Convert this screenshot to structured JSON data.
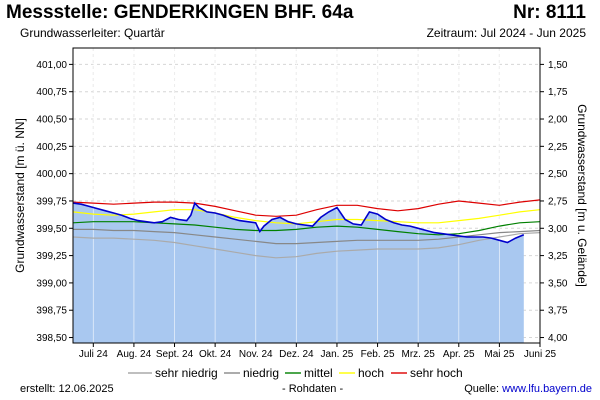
{
  "header": {
    "title": "Messstelle: GENDERKINGEN BHF. 64a",
    "number": "Nr: 8111",
    "aquifer": "Grundwasserleiter: Quartär",
    "period": "Zeitraum: Jul 2024 - Jun 2025"
  },
  "footer": {
    "created": "erstellt:  12.06.2025",
    "raw": "- Rohdaten -",
    "source_label": "Quelle: ",
    "source_link": "www.lfu.bayern.de"
  },
  "colors": {
    "fill": "#a9c8f0",
    "measured": "#0000cc",
    "sehr_niedrig": "#aaaaaa",
    "niedrig": "#888888",
    "mittel": "#008000",
    "hoch": "#ffff00",
    "sehr_hoch": "#dd0000"
  },
  "chart_data": {
    "type": "line",
    "ylabel": "Grundwasserstand [m ü. NN]",
    "ylabel_right": "Grundwasserstand [m u. Gelände]",
    "ylim": [
      398.45,
      401.15
    ],
    "yticks": [
      398.5,
      398.75,
      399.0,
      399.25,
      399.5,
      399.75,
      400.0,
      400.25,
      400.5,
      400.75,
      401.0
    ],
    "ytick_labels": [
      "398,50",
      "398,75",
      "399,00",
      "399,25",
      "399,50",
      "399,75",
      "400,00",
      "400,25",
      "400,50",
      "400,75",
      "401,00"
    ],
    "ytick_labels_right": [
      "4,00",
      "3,75",
      "3,50",
      "3,25",
      "3,00",
      "2,75",
      "2,50",
      "2,25",
      "2,00",
      "1,75",
      "1,50"
    ],
    "xlim": [
      0,
      11.5
    ],
    "xticks": [
      0.5,
      1.5,
      2.5,
      3.5,
      4.5,
      5.5,
      6.5,
      7.5,
      8.5,
      9.5,
      10.5,
      11.5
    ],
    "xtick_labels": [
      "Juli 24",
      "Aug. 24",
      "Sept. 24",
      "Okt. 24",
      "Nov. 24",
      "Dez. 24",
      "Jan. 25",
      "Feb. 25",
      "Mrz. 25",
      "Apr. 25",
      "Mai 25",
      "Juni 25"
    ],
    "grid": true,
    "legend_position": "bottom",
    "x": [
      0,
      0.5,
      1,
      1.5,
      2,
      2.5,
      3,
      3.5,
      4,
      4.5,
      5,
      5.5,
      6,
      6.5,
      7,
      7.5,
      8,
      8.5,
      9,
      9.5,
      10,
      10.5,
      11,
      11.5
    ],
    "series": [
      {
        "name": "sehr niedrig",
        "key": "sehr_niedrig",
        "values": [
          399.42,
          399.41,
          399.41,
          399.4,
          399.39,
          399.37,
          399.34,
          399.31,
          399.28,
          399.25,
          399.23,
          399.24,
          399.27,
          399.29,
          399.3,
          399.31,
          399.31,
          399.31,
          399.32,
          399.35,
          399.39,
          399.42,
          399.45,
          399.46
        ]
      },
      {
        "name": "niedrig",
        "key": "niedrig",
        "values": [
          399.49,
          399.49,
          399.48,
          399.48,
          399.47,
          399.46,
          399.44,
          399.42,
          399.4,
          399.38,
          399.36,
          399.36,
          399.37,
          399.38,
          399.39,
          399.39,
          399.39,
          399.39,
          399.4,
          399.42,
          399.44,
          399.46,
          399.47,
          399.48
        ]
      },
      {
        "name": "mittel",
        "key": "mittel",
        "values": [
          399.55,
          399.56,
          399.56,
          399.56,
          399.55,
          399.54,
          399.53,
          399.51,
          399.49,
          399.48,
          399.48,
          399.49,
          399.51,
          399.52,
          399.51,
          399.49,
          399.47,
          399.45,
          399.44,
          399.45,
          399.48,
          399.52,
          399.55,
          399.56
        ]
      },
      {
        "name": "hoch",
        "key": "hoch",
        "values": [
          399.65,
          399.63,
          399.62,
          399.63,
          399.65,
          399.67,
          399.67,
          399.64,
          399.6,
          399.57,
          399.55,
          399.54,
          399.56,
          399.58,
          399.58,
          399.57,
          399.56,
          399.55,
          399.55,
          399.57,
          399.59,
          399.62,
          399.65,
          399.67
        ]
      },
      {
        "name": "sehr hoch",
        "key": "sehr_hoch",
        "values": [
          399.74,
          399.73,
          399.72,
          399.73,
          399.74,
          399.74,
          399.73,
          399.7,
          399.66,
          399.62,
          399.61,
          399.62,
          399.67,
          399.71,
          399.71,
          399.68,
          399.66,
          399.68,
          399.72,
          399.75,
          399.73,
          399.71,
          399.74,
          399.76
        ]
      }
    ],
    "measured": {
      "x": [
        0,
        0.2,
        0.4,
        0.6,
        0.8,
        1.0,
        1.2,
        1.4,
        1.6,
        1.8,
        2.0,
        2.2,
        2.4,
        2.6,
        2.8,
        2.9,
        3.0,
        3.1,
        3.3,
        3.5,
        3.7,
        3.9,
        4.1,
        4.3,
        4.5,
        4.6,
        4.7,
        4.9,
        5.1,
        5.3,
        5.5,
        5.7,
        5.9,
        6.1,
        6.3,
        6.5,
        6.7,
        6.9,
        7.1,
        7.3,
        7.5,
        7.7,
        7.9,
        8.1,
        8.3,
        8.5,
        8.7,
        8.9,
        9.1,
        9.3,
        9.5,
        9.7,
        9.9,
        10.1,
        10.3,
        10.5,
        10.7,
        10.9,
        11.1
      ],
      "values": [
        399.73,
        399.72,
        399.7,
        399.68,
        399.66,
        399.64,
        399.62,
        399.59,
        399.57,
        399.56,
        399.55,
        399.56,
        399.6,
        399.58,
        399.57,
        399.62,
        399.73,
        399.69,
        399.65,
        399.64,
        399.62,
        399.59,
        399.57,
        399.56,
        399.55,
        399.47,
        399.52,
        399.58,
        399.6,
        399.56,
        399.54,
        399.53,
        399.52,
        399.6,
        399.65,
        399.69,
        399.58,
        399.54,
        399.53,
        399.65,
        399.63,
        399.58,
        399.55,
        399.53,
        399.52,
        399.5,
        399.48,
        399.46,
        399.45,
        399.44,
        399.43,
        399.42,
        399.42,
        399.42,
        399.41,
        399.39,
        399.37,
        399.41,
        399.44
      ]
    }
  }
}
